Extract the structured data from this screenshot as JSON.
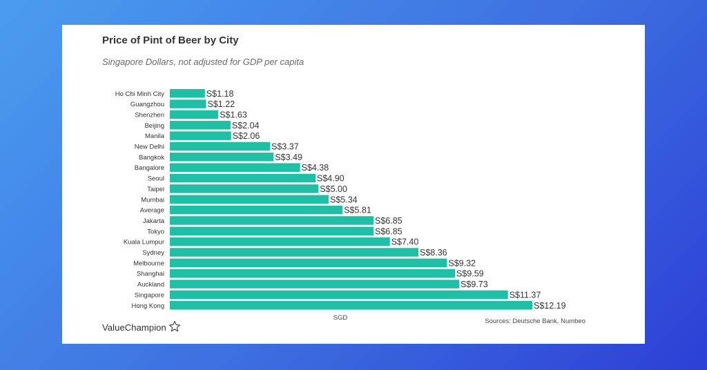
{
  "chart_data": {
    "type": "bar",
    "orientation": "horizontal",
    "title": "Price of Pint of Beer by City",
    "subtitle": "Singapore Dollars, not adjusted for GDP per capita",
    "xlabel": "SGD",
    "ylabel": "",
    "value_prefix": "S$",
    "xlim": [
      0,
      12.19
    ],
    "grid": false,
    "bar_color": "#1fbfa6",
    "categories": [
      "Ho Chi Minh City",
      "Guangzhou",
      "Shenzhen",
      "Beijing",
      "Manila",
      "New Delhi",
      "Bangkok",
      "Bangalore",
      "Seoul",
      "Taipei",
      "Mumbai",
      "Average",
      "Jakarta",
      "Tokyo",
      "Kuala Lumpur",
      "Sydney",
      "Melbourne",
      "Shanghai",
      "Auckland",
      "Singapore",
      "Hong Kong"
    ],
    "values": [
      1.18,
      1.22,
      1.63,
      2.04,
      2.06,
      3.37,
      3.49,
      4.38,
      4.9,
      5.0,
      5.34,
      5.81,
      6.85,
      6.85,
      7.4,
      8.36,
      9.32,
      9.59,
      9.73,
      11.37,
      12.19
    ]
  },
  "footer": {
    "brand": "ValueChampion",
    "sources": "Sources: Deutsche Bank, Numbeo"
  },
  "colors": {
    "background_start": "#4a9df0",
    "background_end": "#2c3fd6",
    "card": "#ffffff",
    "bar": "#1fbfa6"
  },
  "icons": {
    "brand_icon": "star-outline-icon"
  }
}
